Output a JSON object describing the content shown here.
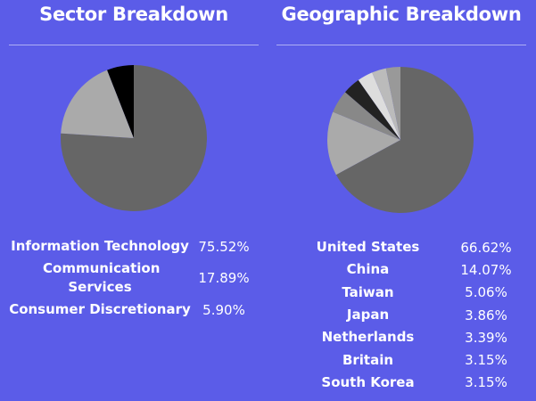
{
  "chart_data": [
    {
      "type": "pie",
      "title": "Sector Breakdown",
      "categories": [
        "Information Technology",
        "Communication Services",
        "Consumer Discretionary"
      ],
      "values": [
        75.52,
        17.89,
        5.9
      ],
      "value_labels": [
        "75.52%",
        "17.89%",
        "5.90%"
      ],
      "colors": [
        "#666666",
        "#aaaaaa",
        "#000000"
      ]
    },
    {
      "type": "pie",
      "title": "Geographic Breakdown",
      "categories": [
        "United States",
        "China",
        "Taiwan",
        "Japan",
        "Netherlands",
        "Britain",
        "South Korea"
      ],
      "values": [
        66.62,
        14.07,
        5.06,
        3.86,
        3.39,
        3.15,
        3.15
      ],
      "value_labels": [
        "66.62%",
        "14.07%",
        "5.06%",
        "3.86%",
        "3.39%",
        "3.15%",
        "3.15%"
      ],
      "colors": [
        "#666666",
        "#aaaaaa",
        "#888888",
        "#222222",
        "#dddddd",
        "#bbbbbb",
        "#999999"
      ]
    }
  ]
}
